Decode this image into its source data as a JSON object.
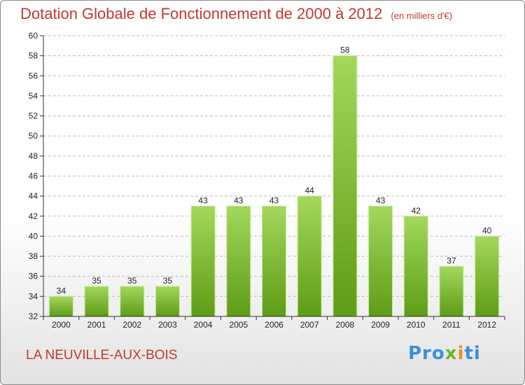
{
  "chart_data": {
    "type": "bar",
    "title": "Dotation Globale de Fonctionnement de 2000 à 2012",
    "subtitle": "(en milliers d'€)",
    "categories": [
      "2000",
      "2001",
      "2002",
      "2003",
      "2004",
      "2005",
      "2006",
      "2007",
      "2008",
      "2009",
      "2010",
      "2011",
      "2012"
    ],
    "values": [
      34,
      35,
      35,
      35,
      43,
      43,
      43,
      44,
      58,
      43,
      42,
      37,
      40
    ],
    "ylim": [
      32,
      60
    ],
    "yticks": [
      32,
      34,
      36,
      38,
      40,
      42,
      44,
      46,
      48,
      50,
      52,
      54,
      56,
      58,
      60
    ],
    "grid": "horizontal-dashed",
    "bar_color": "#7cc12f"
  },
  "footer": {
    "commune": "LA NEUVILLE-AUX-BOIS",
    "logo": {
      "part1": "Pro",
      "part2": "x",
      "part3": "i",
      "part4": "ti"
    }
  }
}
